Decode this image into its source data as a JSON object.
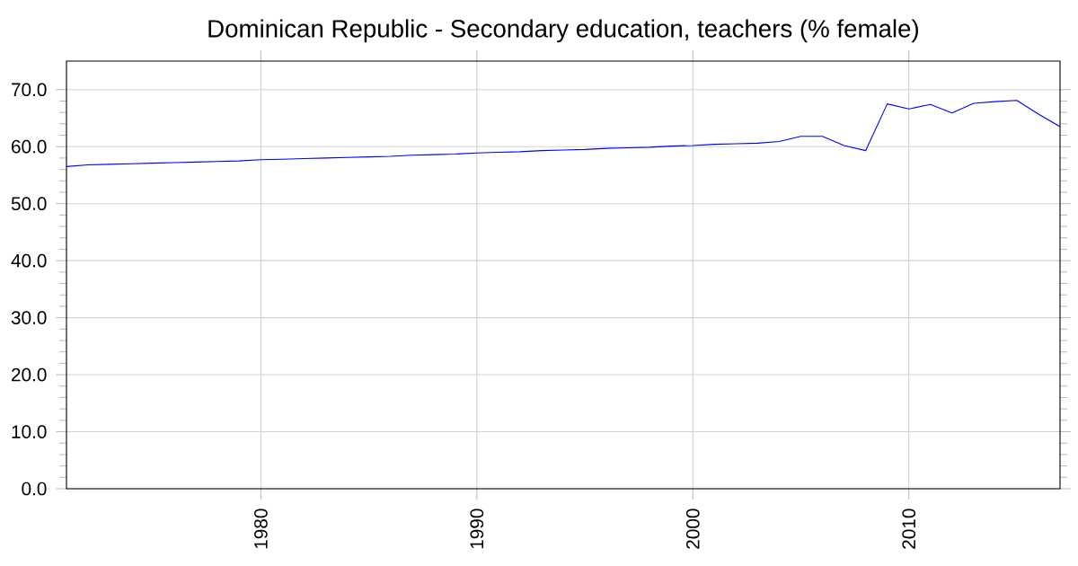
{
  "chart_data": {
    "type": "line",
    "title": "Dominican Republic - Secondary education, teachers (% female)",
    "x": [
      1971,
      1972,
      1973,
      1974,
      1975,
      1976,
      1977,
      1978,
      1979,
      1980,
      1981,
      1982,
      1983,
      1984,
      1985,
      1986,
      1987,
      1988,
      1989,
      1990,
      1991,
      1992,
      1993,
      1994,
      1995,
      1996,
      1997,
      1998,
      1999,
      2000,
      2001,
      2002,
      2003,
      2004,
      2005,
      2006,
      2007,
      2008,
      2009,
      2010,
      2011,
      2012,
      2013,
      2014,
      2015,
      2016,
      2017
    ],
    "series": [
      {
        "color": "#0000ff",
        "values": [
          56.5,
          56.8,
          56.9,
          57.0,
          57.1,
          57.2,
          57.3,
          57.4,
          57.5,
          57.7,
          57.8,
          57.9,
          58.0,
          58.1,
          58.2,
          58.3,
          58.5,
          58.6,
          58.7,
          58.9,
          59.0,
          59.1,
          59.3,
          59.4,
          59.5,
          59.7,
          59.8,
          59.9,
          60.1,
          60.2,
          60.4,
          60.5,
          60.6,
          60.9,
          61.8,
          61.8,
          60.2,
          59.3,
          67.5,
          66.6,
          67.4,
          65.9,
          67.6,
          67.9,
          68.1,
          65.7,
          63.5
        ]
      }
    ],
    "xlim": [
      1971,
      2017
    ],
    "ylim": [
      0,
      75
    ],
    "xticks": [
      1980,
      1990,
      2000,
      2010
    ],
    "yticks": [
      {
        "value": 0,
        "label": "0.0"
      },
      {
        "value": 10,
        "label": "10.0"
      },
      {
        "value": 20,
        "label": "20.0"
      },
      {
        "value": 30,
        "label": "30.0"
      },
      {
        "value": 40,
        "label": "40.0"
      },
      {
        "value": 50,
        "label": "50.0"
      },
      {
        "value": 60,
        "label": "60.0"
      },
      {
        "value": 70,
        "label": "70.0"
      }
    ],
    "grid": true,
    "marker": "none",
    "line_style": "solid"
  }
}
